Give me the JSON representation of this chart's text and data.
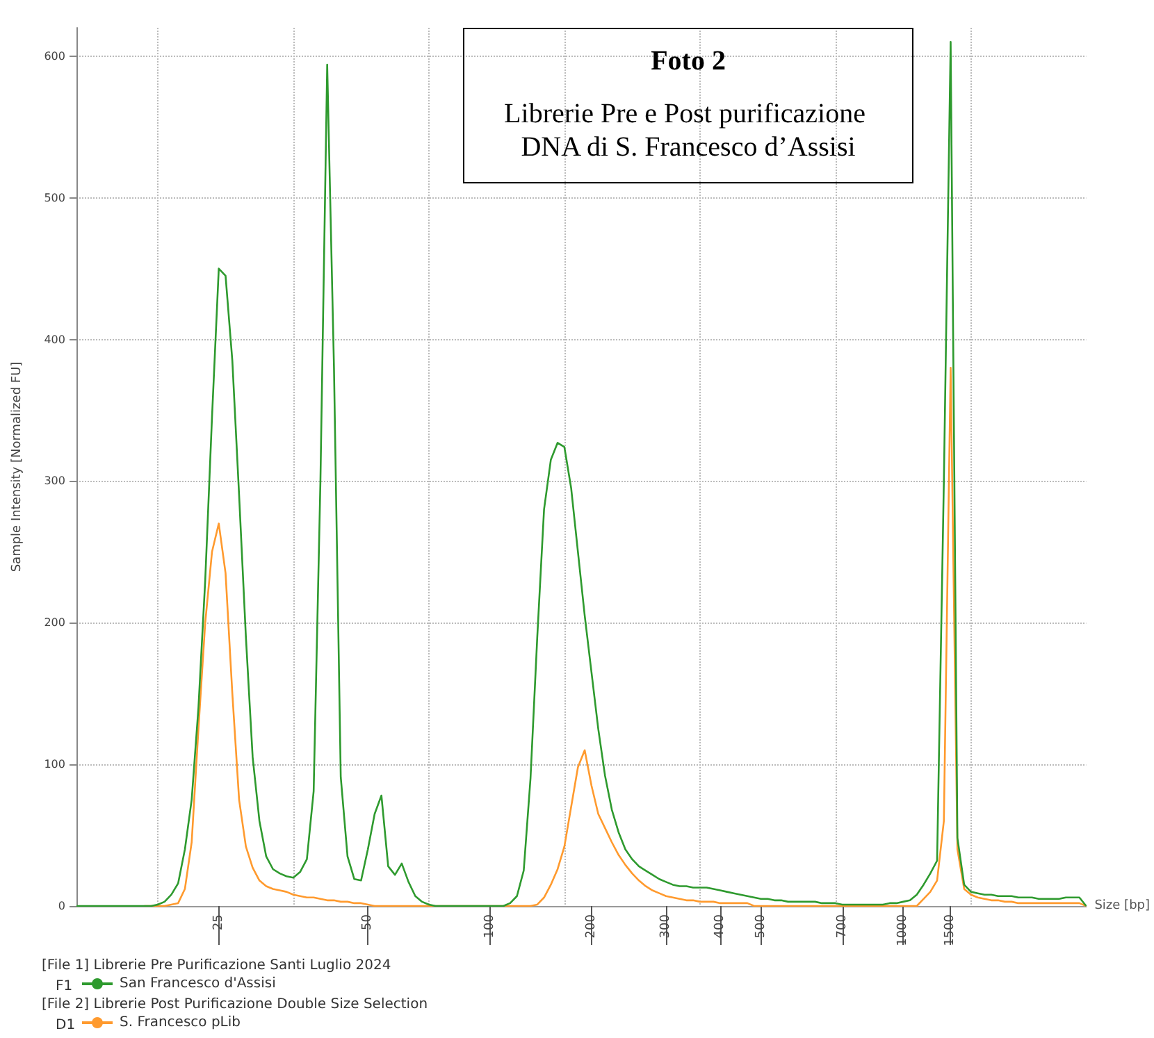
{
  "chart_data": {
    "type": "line",
    "title": "Foto 2",
    "subtitle": "Librerie Pre e Post purificazione DNA di S. Francesco d’Assisi",
    "xlabel": "Size [bp]",
    "ylabel": "Sample Intensity [Normalized FU]",
    "categories": [
      null,
      null,
      null,
      null,
      null,
      null,
      null,
      null,
      null,
      null,
      null,
      null,
      null,
      null,
      null,
      null,
      null,
      null,
      null,
      null,
      null,
      "25",
      null,
      null,
      null,
      null,
      null,
      null,
      null,
      null,
      null,
      null,
      null,
      null,
      null,
      null,
      null,
      null,
      null,
      null,
      null,
      null,
      null,
      "50",
      null,
      null,
      null,
      null,
      null,
      null,
      null,
      null,
      null,
      null,
      null,
      null,
      null,
      null,
      null,
      null,
      null,
      "100",
      null,
      null,
      null,
      null,
      null,
      null,
      null,
      null,
      null,
      null,
      null,
      null,
      null,
      null,
      "200",
      null,
      null,
      null,
      null,
      null,
      null,
      null,
      null,
      null,
      null,
      "300",
      null,
      null,
      null,
      null,
      null,
      null,
      null,
      "400",
      null,
      null,
      null,
      null,
      null,
      "500",
      null,
      null,
      null,
      null,
      null,
      null,
      null,
      null,
      null,
      null,
      null,
      "700",
      null,
      null,
      null,
      null,
      null,
      null,
      null,
      null,
      "1000",
      null,
      null,
      null,
      null,
      null,
      null,
      "1500",
      null,
      null,
      null,
      null,
      null,
      null,
      null,
      null,
      null,
      null,
      null,
      null,
      null,
      null,
      null,
      null,
      null,
      null,
      null,
      null
    ],
    "series": [
      {
        "name": "San Francesco d'Assisi",
        "color": "#2e9a2e",
        "values": [
          0,
          0,
          0,
          0,
          0,
          0,
          0,
          0,
          0,
          0,
          0,
          0,
          1,
          3,
          8,
          16,
          40,
          75,
          140,
          230,
          345,
          450,
          445,
          385,
          290,
          190,
          105,
          60,
          35,
          26,
          23,
          21,
          20,
          24,
          33,
          81,
          300,
          594,
          380,
          91,
          35,
          19,
          18,
          40,
          65,
          78,
          28,
          22,
          30,
          17,
          7,
          3,
          1,
          0,
          0,
          0,
          0,
          0,
          0,
          0,
          0,
          0,
          0,
          0,
          2,
          7,
          25,
          90,
          190,
          280,
          315,
          327,
          324,
          295,
          250,
          205,
          165,
          125,
          92,
          68,
          52,
          40,
          33,
          28,
          25,
          22,
          19,
          17,
          15,
          14,
          14,
          13,
          13,
          13,
          12,
          11,
          10,
          9,
          8,
          7,
          6,
          5,
          5,
          4,
          4,
          3,
          3,
          3,
          3,
          3,
          2,
          2,
          2,
          1,
          1,
          1,
          1,
          1,
          1,
          1,
          2,
          2,
          3,
          4,
          8,
          15,
          23,
          32,
          300,
          610,
          48,
          15,
          10,
          9,
          8,
          8,
          7,
          7,
          7,
          6,
          6,
          6,
          5,
          5,
          5,
          5,
          6,
          6,
          6,
          0
        ]
      },
      {
        "name": "S. Francesco pLib",
        "color": "#ff9a2e",
        "values": [
          null,
          null,
          null,
          null,
          null,
          null,
          null,
          null,
          null,
          null,
          0,
          0,
          0,
          0,
          1,
          2,
          12,
          45,
          125,
          200,
          250,
          270,
          235,
          150,
          75,
          42,
          27,
          18,
          14,
          12,
          11,
          10,
          8,
          7,
          6,
          6,
          5,
          4,
          4,
          3,
          3,
          2,
          2,
          1,
          0,
          0,
          0,
          0,
          0,
          0,
          0,
          0,
          0,
          0,
          0,
          0,
          0,
          0,
          0,
          0,
          0,
          0,
          0,
          0,
          0,
          0,
          0,
          0,
          1,
          6,
          15,
          26,
          42,
          70,
          98,
          110,
          85,
          65,
          55,
          45,
          36,
          29,
          23,
          18,
          14,
          11,
          9,
          7,
          6,
          5,
          4,
          4,
          3,
          3,
          3,
          2,
          2,
          2,
          2,
          2,
          0,
          0,
          0,
          0,
          0,
          0,
          0,
          0,
          0,
          0,
          0,
          0,
          0,
          0,
          0,
          0,
          0,
          0,
          0,
          0,
          0,
          0,
          0,
          0,
          0,
          5,
          10,
          18,
          60,
          380,
          40,
          12,
          8,
          6,
          5,
          4,
          4,
          3,
          3,
          2,
          2,
          2,
          2,
          2,
          2,
          2,
          2,
          2,
          2,
          0
        ]
      }
    ],
    "ylim": [
      0,
      620
    ],
    "yticks": [
      0,
      100,
      200,
      300,
      400,
      500,
      600
    ],
    "grid": true,
    "legend": "bottom left",
    "marker": "none",
    "line_style": "solid",
    "annotations": [
      "[File 1] Librerie Pre Purificazione Santi Luglio 2024",
      "F1",
      "[File 2] Librerie Post Purificazione Double Size Selection",
      "D1"
    ]
  }
}
